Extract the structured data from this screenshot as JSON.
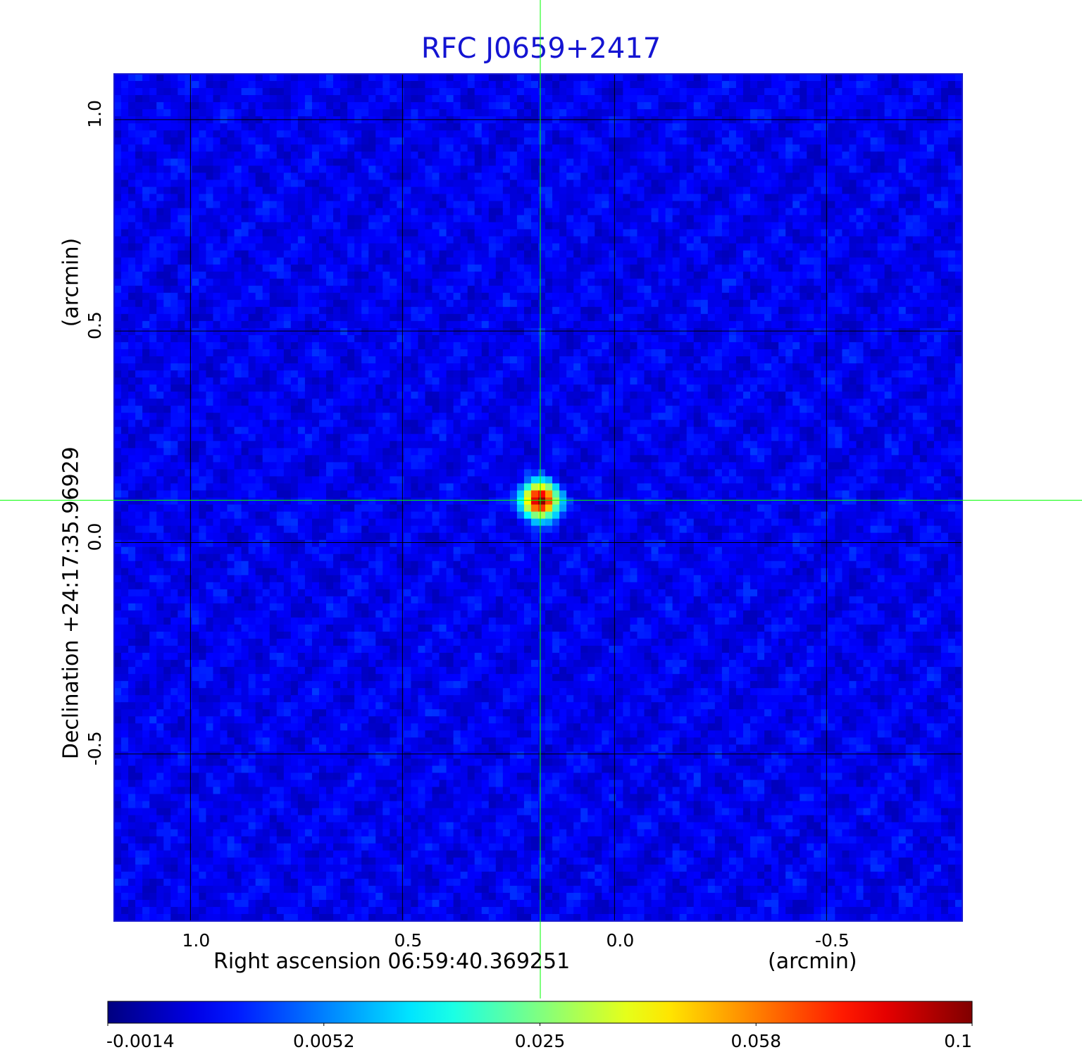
{
  "chart_data": {
    "type": "heatmap",
    "title": "RFC J0659+2417",
    "xlabel": "Right ascension  06:59:40.369251",
    "xunit": "(arcmin)",
    "ylabel": "Declination  +24:17:35.96929",
    "yunit": "(arcmin)",
    "xlim": [
      1.18,
      -0.82
    ],
    "ylim": [
      -0.895,
      1.108
    ],
    "x_ticks": [
      1.0,
      0.5,
      0.0,
      -0.5
    ],
    "x_tick_labels": [
      "1.0",
      "0.5",
      "0.0",
      "-0.5"
    ],
    "y_ticks": [
      1.0,
      0.5,
      0.0,
      -0.5
    ],
    "y_tick_labels": [
      "1.0",
      "0.5",
      "0.0",
      "-0.5"
    ],
    "grid": true,
    "colormap": "jet",
    "colorbar": {
      "orientation": "horizontal",
      "position": "bottom",
      "min": -0.0014,
      "max": 0.1,
      "tick_labels": [
        "-0.0014",
        "0.0052",
        "0.025",
        "0.058",
        "0.1"
      ]
    },
    "crosshair": {
      "x": 0.175,
      "y": 0.1,
      "color": "#00ff00"
    },
    "source": {
      "x": 0.175,
      "y": 0.1,
      "peak": 0.1
    },
    "background_level": 0.0
  }
}
